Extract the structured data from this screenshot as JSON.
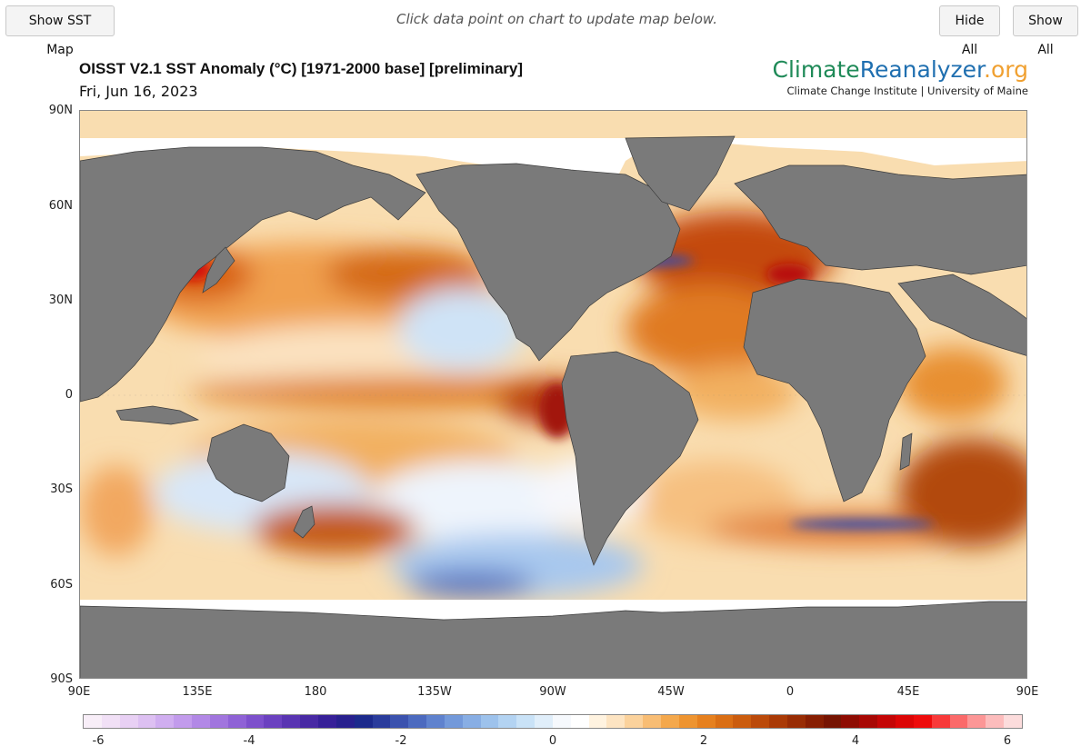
{
  "toolbar": {
    "show_sst_map": "Show SST Map",
    "hint": "Click data point on chart to update map below.",
    "hide_all": "Hide All",
    "show_all": "Show All"
  },
  "map": {
    "title": "OISST V2.1 SST Anomaly (°C) [1971-2000 base] [preliminary]",
    "date": "Fri, Jun 16, 2023",
    "brand": {
      "part1": "Climate",
      "part2": "Reanalyzer",
      "part3": ".org",
      "subtitle": "Climate Change Institute | University of Maine",
      "colors": [
        "#1f8a58",
        "#1f6fb0",
        "#f0a030"
      ]
    },
    "lat_labels": [
      "90N",
      "60N",
      "30N",
      "0",
      "30S",
      "60S",
      "90S"
    ],
    "lon_labels": [
      "90E",
      "135E",
      "180",
      "135W",
      "90W",
      "45W",
      "0",
      "45E",
      "90E"
    ],
    "land_color": "#7a7a7a",
    "ice_color": "#ffffff"
  },
  "colorbar": {
    "labels": [
      "-6",
      "-4",
      "-2",
      "0",
      "2",
      "4",
      "6"
    ],
    "range": [
      -6,
      6
    ],
    "colors": [
      "#f8eef8",
      "#f1e0f6",
      "#e8d0f4",
      "#ddc0f2",
      "#d0aef0",
      "#c29bec",
      "#b288e6",
      "#a175de",
      "#8f62d6",
      "#7d50cc",
      "#6b41c0",
      "#5934b2",
      "#4829a4",
      "#372098",
      "#28208e",
      "#1c2a8c",
      "#2a3c9c",
      "#3b52ae",
      "#4c6abf",
      "#5f82ce",
      "#7399da",
      "#88aee4",
      "#9dc2ec",
      "#b3d3f2",
      "#c9e2f7",
      "#e0eefa",
      "#f6f9fd",
      "#ffffff",
      "#fff3e0",
      "#fde4c2",
      "#fbd29c",
      "#f8bd74",
      "#f4a84c",
      "#ee9430",
      "#e6801e",
      "#da6e14",
      "#cb5c0e",
      "#bb4a0a",
      "#aa3a06",
      "#982c04",
      "#871e02",
      "#761402",
      "#8e0c02",
      "#a80804",
      "#c40606",
      "#dc0606",
      "#ee0c0c",
      "#f83a3a",
      "#fb6a6a",
      "#fc9696",
      "#fcbcbc",
      "#fcdcdc"
    ]
  }
}
